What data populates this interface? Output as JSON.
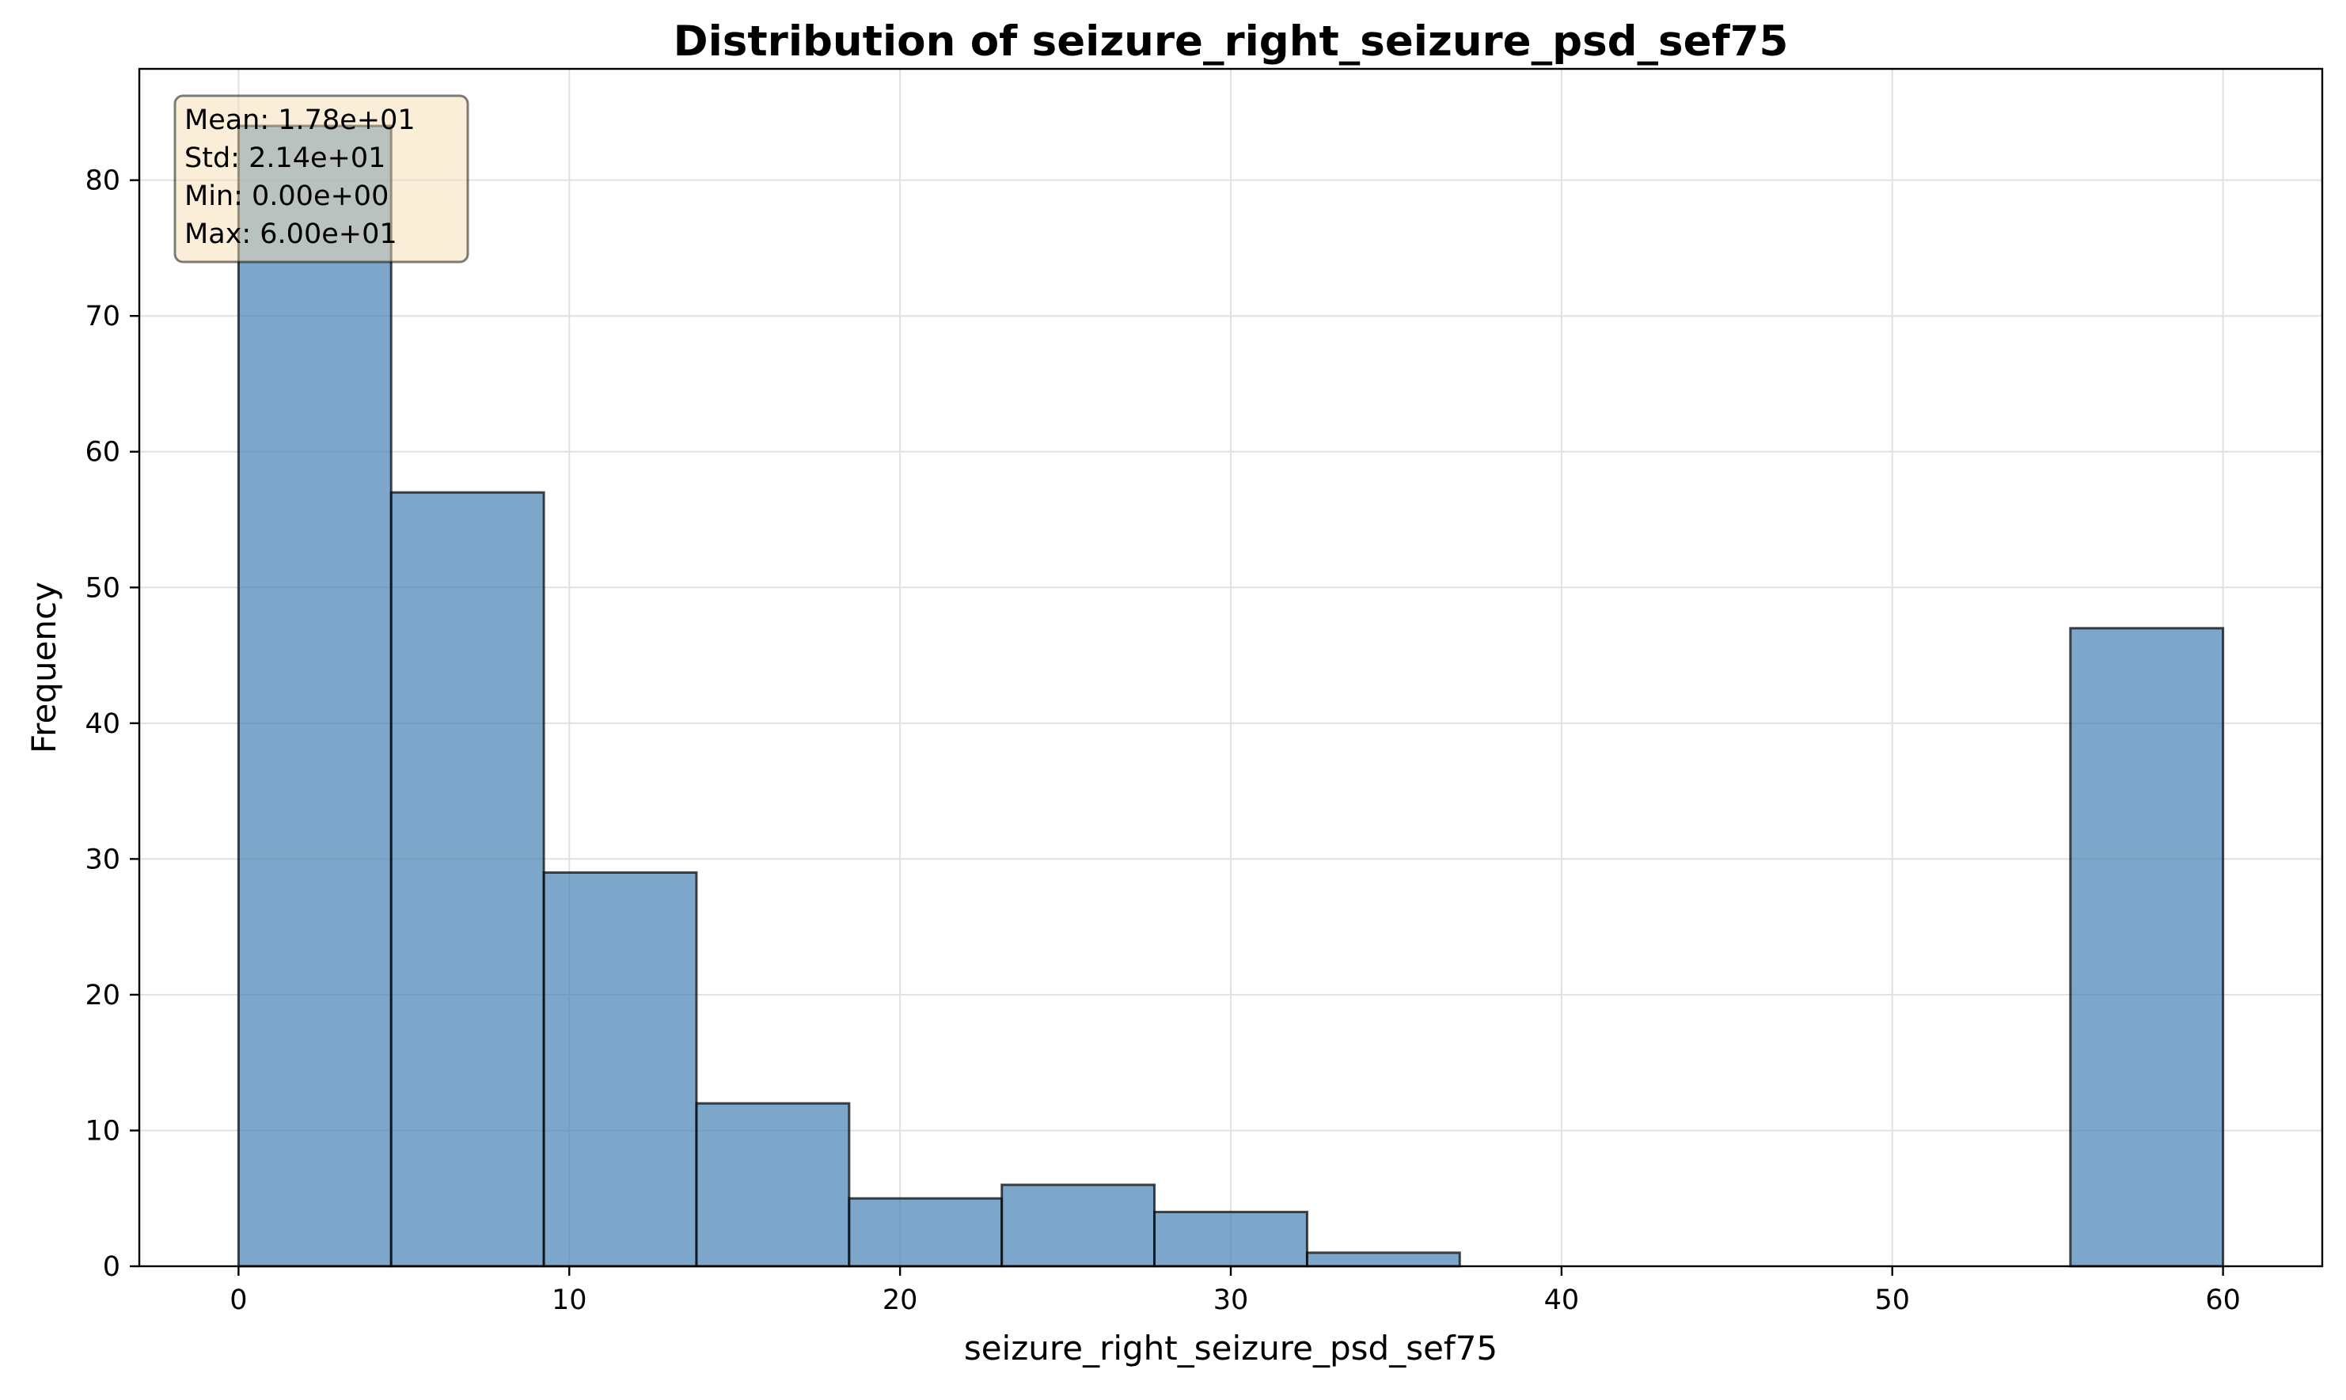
{
  "chart_data": {
    "type": "bar",
    "title": "Distribution of seizure_right_seizure_psd_sef75",
    "xlabel": "seizure_right_seizure_psd_sef75",
    "ylabel": "Frequency",
    "xlim": [
      -3,
      63
    ],
    "ylim": [
      0,
      88.2
    ],
    "xticks": [
      0,
      10,
      20,
      30,
      40,
      50,
      60
    ],
    "yticks": [
      0,
      10,
      20,
      30,
      40,
      50,
      60,
      70,
      80
    ],
    "grid": true,
    "bin_edges": [
      0,
      4.615,
      9.231,
      13.846,
      18.462,
      23.077,
      27.692,
      32.308,
      36.923,
      41.538,
      46.154,
      50.769,
      55.385,
      60
    ],
    "values": [
      84,
      57,
      29,
      12,
      5,
      6,
      4,
      1,
      0,
      0,
      0,
      0,
      47
    ],
    "stats_box": {
      "lines": [
        "Mean: 1.78e+01",
        "Std: 2.14e+01",
        "Min: 0.00e+00",
        "Max: 6.00e+01"
      ],
      "placement": "top-left"
    },
    "colors": {
      "bar_fill": "#4682b4",
      "bar_edge": "#000000",
      "stats_box_fill": "#f5deb3",
      "grid": "#e0e0e0"
    }
  }
}
